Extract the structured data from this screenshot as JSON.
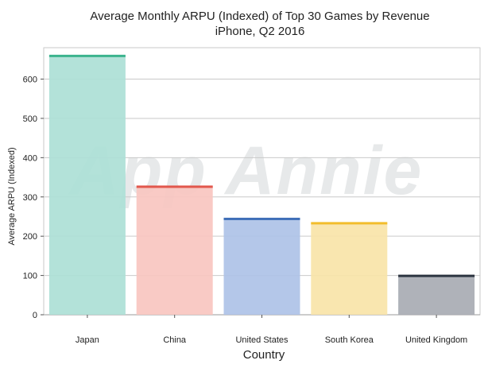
{
  "chart_data": {
    "type": "bar",
    "title": "Average Monthly ARPU (Indexed) of Top 30 Games by Revenue",
    "subtitle": "iPhone, Q2 2016",
    "xlabel": "Country",
    "ylabel": "Average ARPU (Indexed)",
    "categories": [
      "Japan",
      "China",
      "United States",
      "South Korea",
      "United Kingdom"
    ],
    "values": [
      660,
      327,
      245,
      234,
      100
    ],
    "ylim": [
      0,
      680
    ],
    "yticks": [
      0,
      100,
      200,
      300,
      400,
      500,
      600
    ],
    "ytick_labels": [
      "0",
      "100",
      "200",
      "300",
      "400",
      "500",
      "600"
    ],
    "grid": true,
    "legend": "none",
    "watermark": "App Annie",
    "bar_fill_colors": [
      "#ace0d6",
      "#f8c5c0",
      "#aec2e7",
      "#f8e4a8",
      "#a8abb3"
    ],
    "bar_top_colors": [
      "#3cb48e",
      "#e2574c",
      "#3f6fb8",
      "#f2bd2c",
      "#2c3440"
    ]
  }
}
